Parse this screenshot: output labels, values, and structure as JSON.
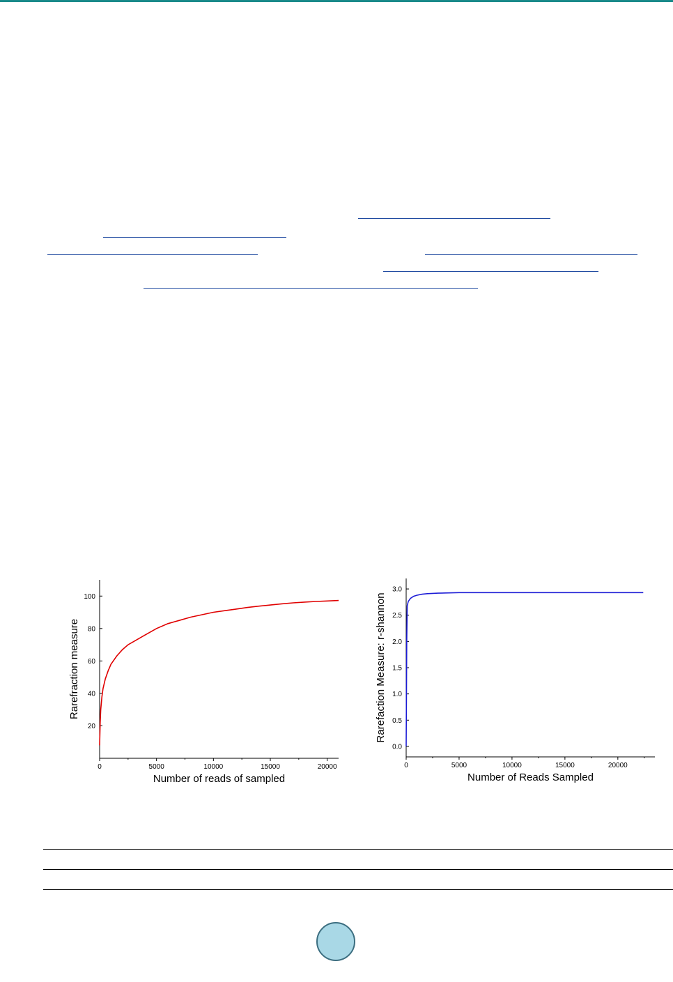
{
  "colors": {
    "header_rule": "#1a8a8a",
    "link_underline": "#1f4aa0",
    "series_left": "#e00000",
    "series_right": "#1c1cd6",
    "page_badge": "#a9d8e6"
  },
  "chart_data": [
    {
      "type": "line",
      "title": "",
      "xlabel": "Number of reads of sampled",
      "ylabel": "Rarefraction measure",
      "xlim": [
        0,
        21000
      ],
      "ylim": [
        0,
        110
      ],
      "xticks": [
        0,
        5000,
        10000,
        15000,
        20000
      ],
      "xtick_labels": [
        "0",
        "5000",
        "10000",
        "15000",
        "20000"
      ],
      "yticks": [
        20,
        40,
        60,
        80,
        100
      ],
      "ytick_labels": [
        "20",
        "40",
        "60",
        "80",
        "100"
      ],
      "grid": false,
      "series": [
        {
          "color": "#e00000",
          "x": [
            0,
            50,
            100,
            200,
            300,
            500,
            750,
            1000,
            1500,
            2000,
            2500,
            3000,
            4000,
            5000,
            6000,
            7000,
            8000,
            9000,
            10000,
            11000,
            12000,
            13000,
            14000,
            15000,
            16000,
            17000,
            18000,
            19000,
            20000,
            21000
          ],
          "y": [
            8,
            22,
            30,
            38,
            43,
            49,
            54,
            58,
            63,
            67,
            70,
            72,
            76,
            80,
            83,
            85,
            87,
            88.5,
            90,
            91,
            92,
            93,
            93.8,
            94.5,
            95.2,
            95.8,
            96.3,
            96.7,
            97,
            97.3
          ]
        }
      ]
    },
    {
      "type": "line",
      "title": "",
      "xlabel": "Number of Reads Sampled",
      "ylabel": "Rarefaction Measure: r-shannon",
      "xlim": [
        0,
        23500
      ],
      "ylim": [
        -0.2,
        3.2
      ],
      "xticks": [
        0,
        5000,
        10000,
        15000,
        20000
      ],
      "xtick_labels": [
        "0",
        "5000",
        "10000",
        "15000",
        "20000"
      ],
      "yticks": [
        0.0,
        0.5,
        1.0,
        1.5,
        2.0,
        2.5,
        3.0
      ],
      "ytick_labels": [
        "0.0",
        "0.5",
        "1.0",
        "1.5",
        "2.0",
        "2.5",
        "3.0"
      ],
      "grid": false,
      "series": [
        {
          "color": "#1c1cd6",
          "x": [
            0,
            20,
            50,
            100,
            200,
            400,
            700,
            1000,
            1500,
            2000,
            3000,
            5000,
            10000,
            15000,
            20000,
            22400
          ],
          "y": [
            0.0,
            0.7,
            2.0,
            2.68,
            2.76,
            2.82,
            2.86,
            2.88,
            2.9,
            2.91,
            2.92,
            2.93,
            2.93,
            2.93,
            2.93,
            2.93
          ]
        }
      ]
    }
  ]
}
